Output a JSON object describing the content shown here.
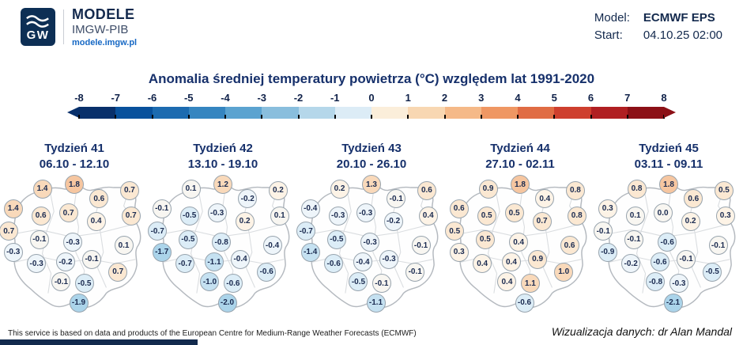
{
  "header": {
    "logo_text": "GW",
    "brand_line1": "MODELE",
    "brand_line2": "IMGW-PIB",
    "brand_url": "modele.imgw.pl",
    "model_label": "Model:",
    "model_value": "ECMWF EPS",
    "start_label": "Start:",
    "start_value": "04.10.25 02:00"
  },
  "title": "Anomalia średniej temperatury powietrza (°C) względem lat 1991-2020",
  "colorbar": {
    "tick_labels": [
      "-8",
      "-7",
      "-6",
      "-5",
      "-4",
      "-3",
      "-2",
      "-1",
      "0",
      "1",
      "2",
      "3",
      "4",
      "5",
      "6",
      "7",
      "8"
    ],
    "segment_colors": [
      "#08306b",
      "#08519c",
      "#1c6bb0",
      "#3585c0",
      "#5ba3d0",
      "#89bedd",
      "#b5d7ea",
      "#dcecf6",
      "#fbeeda",
      "#f8d7b2",
      "#f5b988",
      "#ef9763",
      "#e06c44",
      "#ce3f2e",
      "#b01f22",
      "#8c1016"
    ]
  },
  "chart_data": {
    "type": "heatmap",
    "title": "Anomalia średniej temperatury powietrza (°C) względem lat 1991-2020",
    "unit": "°C",
    "colorbar_range": [
      -8,
      8
    ],
    "colorbar_ticks": [
      -8,
      -7,
      -6,
      -5,
      -4,
      -3,
      -2,
      -1,
      0,
      1,
      2,
      3,
      4,
      5,
      6,
      7,
      8
    ],
    "stations": [
      {
        "id": "s01",
        "x": 8,
        "y": 24
      },
      {
        "id": "s02",
        "x": 28,
        "y": 10
      },
      {
        "id": "s03",
        "x": 50,
        "y": 7
      },
      {
        "id": "s04",
        "x": 67,
        "y": 17
      },
      {
        "id": "s05",
        "x": 88,
        "y": 11
      },
      {
        "id": "s06",
        "x": 27,
        "y": 29
      },
      {
        "id": "s07",
        "x": 46,
        "y": 27
      },
      {
        "id": "s08",
        "x": 65,
        "y": 33
      },
      {
        "id": "s09",
        "x": 89,
        "y": 29
      },
      {
        "id": "s10",
        "x": 5,
        "y": 40
      },
      {
        "id": "s11",
        "x": 26,
        "y": 46
      },
      {
        "id": "s12",
        "x": 49,
        "y": 48
      },
      {
        "id": "s13",
        "x": 84,
        "y": 50
      },
      {
        "id": "s14",
        "x": 8,
        "y": 55
      },
      {
        "id": "s15",
        "x": 24,
        "y": 63
      },
      {
        "id": "s16",
        "x": 44,
        "y": 62
      },
      {
        "id": "s17",
        "x": 62,
        "y": 60
      },
      {
        "id": "s18",
        "x": 80,
        "y": 69
      },
      {
        "id": "s19",
        "x": 41,
        "y": 76
      },
      {
        "id": "s20",
        "x": 57,
        "y": 77
      },
      {
        "id": "s21",
        "x": 53,
        "y": 91
      }
    ],
    "weeks": [
      {
        "label": "Tydzień 41",
        "dates": "06.10 - 12.10",
        "values": [
          1.4,
          1.4,
          1.8,
          0.6,
          0.7,
          0.6,
          0.7,
          0.4,
          0.7,
          0.7,
          -0.1,
          -0.3,
          0.1,
          -0.3,
          -0.3,
          -0.2,
          -0.1,
          0.7,
          -0.1,
          -0.5,
          -1.9
        ]
      },
      {
        "label": "Tydzień 42",
        "dates": "13.10 - 19.10",
        "values": [
          -0.1,
          0.1,
          1.2,
          -0.2,
          0.2,
          -0.5,
          -0.3,
          0.2,
          0.1,
          -0.7,
          -0.5,
          -0.8,
          -0.4,
          -1.7,
          -0.7,
          -1.1,
          -0.4,
          -0.6,
          -1.0,
          -0.6,
          -2.0
        ]
      },
      {
        "label": "Tydzień 43",
        "dates": "20.10 - 26.10",
        "values": [
          -0.4,
          0.2,
          1.3,
          -0.1,
          0.6,
          -0.3,
          -0.3,
          -0.2,
          0.4,
          -0.7,
          -0.5,
          -0.3,
          -0.1,
          -1.4,
          -0.6,
          -0.4,
          -0.3,
          -0.1,
          -0.5,
          -0.1,
          -1.1
        ]
      },
      {
        "label": "Tydzień 44",
        "dates": "27.10 - 02.11",
        "values": [
          0.6,
          0.9,
          1.8,
          0.4,
          0.8,
          0.5,
          0.5,
          0.7,
          0.8,
          0.5,
          0.5,
          0.4,
          0.6,
          0.3,
          0.4,
          0.4,
          0.9,
          1.0,
          0.4,
          1.1,
          -0.6
        ]
      },
      {
        "label": "Tydzień 45",
        "dates": "03.11 - 09.11",
        "values": [
          0.3,
          0.8,
          1.8,
          0.6,
          0.5,
          0.1,
          0.0,
          0.2,
          0.3,
          -0.1,
          -0.1,
          -0.6,
          -0.1,
          -0.9,
          -0.2,
          -0.6,
          -0.1,
          -0.5,
          -0.8,
          -0.3,
          -2.1
        ]
      }
    ]
  },
  "footer": {
    "disclaimer": "This service is based on data and products of the European Centre for Medium-Range Weather Forecasts (ECMWF)",
    "credit": "Wizualizacja danych: dr Alan Mandal"
  }
}
